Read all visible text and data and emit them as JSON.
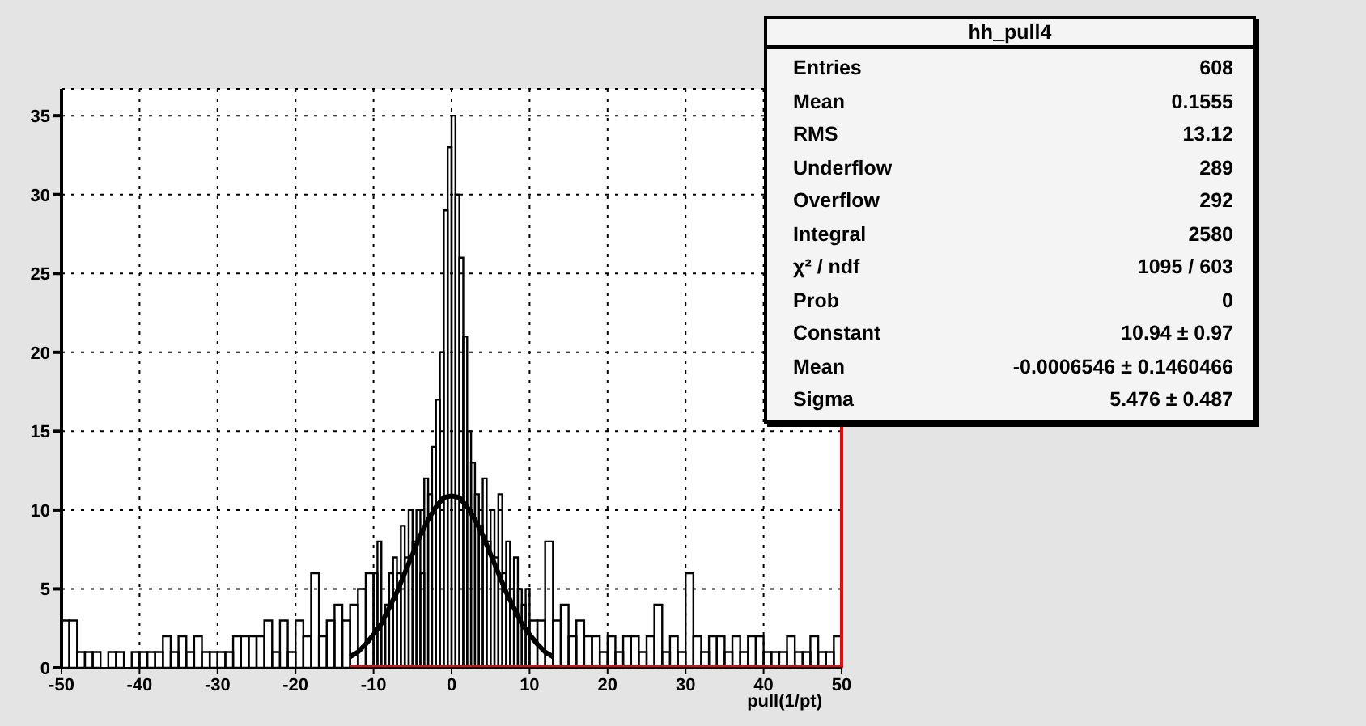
{
  "chart_data": {
    "type": "histogram",
    "title": "hh_pull4",
    "xlabel": "pull(1/pt)",
    "bins": [
      -50,
      -49,
      -48,
      -47,
      -46,
      -45,
      -44,
      -43,
      -42,
      -41,
      -40,
      -39,
      -38,
      -37,
      -36,
      -35,
      -34,
      -33,
      -32,
      -31,
      -30,
      -29,
      -28,
      -27,
      -26,
      -25,
      -24,
      -23,
      -22,
      -21,
      -20,
      -19,
      -18,
      -17,
      -16,
      -15,
      -14,
      -13,
      -12,
      -11,
      -10,
      -9.5,
      -9,
      -8.5,
      -8,
      -7.5,
      -7,
      -6.5,
      -6,
      -5.5,
      -5,
      -4.5,
      -4,
      -3.5,
      -3,
      -2.5,
      -2,
      -1.5,
      -1,
      -0.5,
      0,
      0.5,
      1,
      1.5,
      2,
      2.5,
      3,
      3.5,
      4,
      4.5,
      5,
      5.5,
      6,
      6.5,
      7,
      7.5,
      8,
      8.5,
      9,
      9.5,
      10,
      11,
      12,
      13,
      14,
      15,
      16,
      17,
      18,
      19,
      20,
      21,
      22,
      23,
      24,
      25,
      26,
      27,
      28,
      29,
      30,
      31,
      32,
      33,
      34,
      35,
      36,
      37,
      38,
      39,
      40,
      41,
      42,
      43,
      44,
      45,
      46,
      47,
      48,
      49,
      50
    ],
    "values": [
      3,
      3,
      1,
      1,
      1,
      0,
      1,
      1,
      0,
      1,
      1,
      1,
      1,
      2,
      1,
      2,
      1,
      2,
      1,
      1,
      1,
      1,
      2,
      2,
      2,
      2,
      3,
      1,
      3,
      1,
      3,
      2,
      6,
      2,
      3,
      4,
      3,
      4,
      5,
      6,
      6,
      8,
      3,
      4,
      6,
      7,
      6,
      9,
      7,
      10,
      8,
      10,
      6,
      12,
      11,
      14,
      17,
      20,
      29,
      33,
      35,
      30,
      26,
      21,
      15,
      13,
      11,
      9,
      12,
      8,
      10,
      7,
      11,
      6,
      8,
      5,
      7,
      5,
      4,
      5,
      3,
      3,
      8,
      3,
      4,
      2,
      3,
      2,
      2,
      1,
      2,
      1,
      2,
      2,
      1,
      2,
      4,
      1,
      2,
      1,
      6,
      2,
      1,
      2,
      2,
      1,
      2,
      1,
      2,
      2,
      1,
      1,
      1,
      2,
      1,
      1,
      2,
      1,
      1,
      2
    ],
    "color": "#000000",
    "series": [
      {
        "type": "line",
        "color": "#000000",
        "x": [
          -13,
          -12,
          -11,
          -10,
          -9,
          -8,
          -7,
          -6,
          -5,
          -4,
          -3,
          -2,
          -1,
          0,
          1,
          2,
          3,
          4,
          5,
          6,
          7,
          8,
          9,
          10,
          11,
          12,
          13
        ],
        "values": [
          0.7,
          1.0,
          1.5,
          2.1,
          2.8,
          3.8,
          4.8,
          6.0,
          7.2,
          8.4,
          9.4,
          10.2,
          10.8,
          10.9,
          10.8,
          10.2,
          9.4,
          8.4,
          7.2,
          6.0,
          4.8,
          3.8,
          2.8,
          2.1,
          1.5,
          1.0,
          0.7
        ]
      },
      {
        "type": "line",
        "color": "#ff0000",
        "x": [
          -13,
          50
        ],
        "values": [
          0,
          0
        ]
      }
    ],
    "ref_lines": [
      {
        "axis": "x",
        "value": 50,
        "color": "#ff0000"
      }
    ],
    "xlim": [
      -50,
      50
    ],
    "xticks": [
      -50,
      -40,
      -30,
      -20,
      -10,
      0,
      10,
      20,
      30,
      40,
      50
    ],
    "ylim": [
      0,
      36.7
    ],
    "yticks": [
      0,
      5,
      10,
      15,
      20,
      25,
      30,
      35
    ],
    "grid": true,
    "annotations": [
      "Entries",
      "608",
      "Mean",
      "0.1555",
      "RMS",
      "13.12",
      "Underflow",
      "289",
      "Overflow",
      "292",
      "Integral",
      "2580",
      "χ² / ndf",
      "1095 / 603",
      "Prob",
      "0",
      "Constant",
      "10.94 ± 0.97",
      "Mean",
      "-0.0006546 ± 0.1460466",
      "Sigma",
      "5.476 ± 0.487"
    ]
  }
}
